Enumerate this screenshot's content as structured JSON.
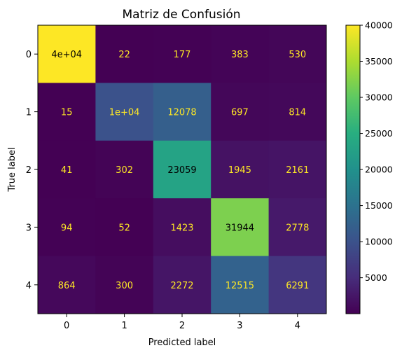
{
  "chart_data": {
    "type": "heatmap",
    "title": "Matriz de Confusión",
    "xlabel": "Predicted label",
    "ylabel": "True label",
    "x_categories": [
      "0",
      "1",
      "2",
      "3",
      "4"
    ],
    "y_categories": [
      "0",
      "1",
      "2",
      "3",
      "4"
    ],
    "values": [
      [
        40000,
        22,
        177,
        383,
        530
      ],
      [
        15,
        10000,
        12078,
        697,
        814
      ],
      [
        41,
        302,
        23059,
        1945,
        2161
      ],
      [
        94,
        52,
        1423,
        31944,
        2778
      ],
      [
        864,
        300,
        2272,
        12515,
        6291
      ]
    ],
    "value_labels": [
      [
        "4e+04",
        "22",
        "177",
        "383",
        "530"
      ],
      [
        "15",
        "1e+04",
        "12078",
        "697",
        "814"
      ],
      [
        "41",
        "302",
        "23059",
        "1945",
        "2161"
      ],
      [
        "94",
        "52",
        "1423",
        "31944",
        "2778"
      ],
      [
        "864",
        "300",
        "2272",
        "12515",
        "6291"
      ]
    ],
    "colormap": "viridis",
    "vmin": 15,
    "vmax": 40000,
    "colorbar_ticks": [
      5000,
      10000,
      15000,
      20000,
      25000,
      30000,
      35000,
      40000
    ],
    "colorbar_tick_labels": [
      "5000",
      "10000",
      "15000",
      "20000",
      "25000",
      "30000",
      "35000",
      "40000"
    ],
    "text_color_dark_cells": "#fde725",
    "text_color_light_cells": "#000000"
  }
}
